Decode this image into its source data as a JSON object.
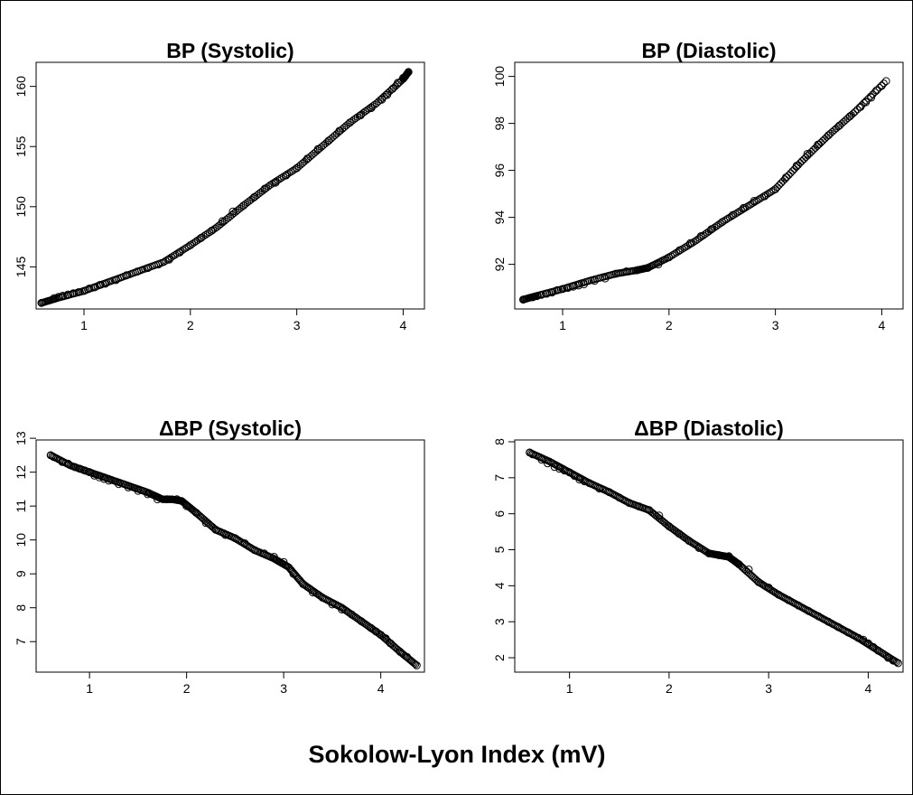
{
  "figure": {
    "xlabel": "Sokolow-Lyon Index (mV)"
  },
  "chart_data": [
    {
      "type": "scatter",
      "title": "BP (Systolic)",
      "xlabel": "",
      "ylabel": "",
      "xlim": [
        0.55,
        4.2
      ],
      "ylim": [
        141.5,
        162
      ],
      "xticks": [
        1,
        2,
        3,
        4
      ],
      "yticks": [
        145,
        150,
        155,
        160
      ],
      "grid": false,
      "curve": {
        "x": [
          0.6,
          0.75,
          1.0,
          1.25,
          1.5,
          1.75,
          2.0,
          2.25,
          2.5,
          2.75,
          3.0,
          3.25,
          3.5,
          3.75,
          4.0,
          4.05
        ],
        "y": [
          142.0,
          142.4,
          143.0,
          143.8,
          144.6,
          145.4,
          146.8,
          148.3,
          150.1,
          151.8,
          153.2,
          155.1,
          157.0,
          158.6,
          160.6,
          161.2
        ]
      },
      "series": [
        {
          "x": [
            0.6,
            0.72,
            0.76,
            0.8,
            0.85,
            0.9,
            0.95,
            1.0,
            1.05,
            1.1,
            1.15,
            1.2,
            1.3,
            1.4,
            1.5,
            1.6,
            1.7,
            1.8,
            1.9,
            2.0,
            2.1,
            2.2,
            2.3,
            2.4,
            2.5,
            2.6,
            2.7,
            2.8,
            2.9,
            3.0,
            3.1,
            3.2,
            3.3,
            3.4,
            3.5,
            3.6,
            3.7,
            3.8,
            3.85,
            3.9,
            3.95,
            4.0,
            4.05
          ],
          "y": [
            142.0,
            142.4,
            142.5,
            142.6,
            142.7,
            142.8,
            142.9,
            143.0,
            143.2,
            143.3,
            143.5,
            143.6,
            143.9,
            144.3,
            144.6,
            144.9,
            145.2,
            145.6,
            146.2,
            146.8,
            147.4,
            148.0,
            148.8,
            149.6,
            150.1,
            150.8,
            151.5,
            152.0,
            152.6,
            153.2,
            154.0,
            154.8,
            155.5,
            156.3,
            157.0,
            157.6,
            158.2,
            158.9,
            159.3,
            159.8,
            160.3,
            160.7,
            161.2
          ]
        }
      ]
    },
    {
      "type": "scatter",
      "title": "BP (Diastolic)",
      "xlabel": "",
      "ylabel": "",
      "xlim": [
        0.55,
        4.2
      ],
      "ylim": [
        90.1,
        100.6
      ],
      "xticks": [
        1,
        2,
        3,
        4
      ],
      "yticks": [
        92,
        94,
        96,
        98,
        100
      ],
      "grid": false,
      "curve": {
        "x": [
          0.63,
          0.75,
          1.0,
          1.25,
          1.5,
          1.7,
          1.8,
          2.0,
          2.25,
          2.5,
          2.75,
          3.0,
          3.25,
          3.5,
          3.75,
          4.04
        ],
        "y": [
          90.5,
          90.65,
          90.95,
          91.3,
          91.6,
          91.75,
          91.85,
          92.3,
          93.0,
          93.8,
          94.5,
          95.2,
          96.4,
          97.5,
          98.5,
          99.8
        ]
      },
      "series": [
        {
          "x": [
            0.63,
            0.72,
            0.76,
            0.8,
            0.85,
            0.9,
            0.95,
            1.0,
            1.05,
            1.1,
            1.15,
            1.2,
            1.3,
            1.4,
            1.5,
            1.6,
            1.7,
            1.8,
            1.9,
            2.0,
            2.1,
            2.2,
            2.3,
            2.4,
            2.5,
            2.6,
            2.7,
            2.8,
            2.9,
            3.0,
            3.1,
            3.2,
            3.3,
            3.4,
            3.5,
            3.6,
            3.7,
            3.8,
            3.85,
            3.9,
            3.95,
            4.0,
            4.04
          ],
          "y": [
            90.5,
            90.6,
            90.65,
            90.7,
            90.75,
            90.8,
            90.9,
            90.95,
            91.0,
            91.05,
            91.1,
            91.15,
            91.3,
            91.4,
            91.6,
            91.7,
            91.75,
            91.85,
            92.0,
            92.3,
            92.6,
            92.9,
            93.2,
            93.5,
            93.8,
            94.1,
            94.4,
            94.7,
            94.9,
            95.2,
            95.7,
            96.2,
            96.7,
            97.1,
            97.5,
            97.9,
            98.3,
            98.7,
            98.9,
            99.1,
            99.4,
            99.6,
            99.8
          ]
        }
      ]
    },
    {
      "type": "scatter",
      "title": "ΔBP (Systolic)",
      "xlabel": "",
      "ylabel": "",
      "xlim": [
        0.45,
        4.45
      ],
      "ylim": [
        6.1,
        12.95
      ],
      "xticks": [
        1,
        2,
        3,
        4
      ],
      "yticks": [
        7,
        8,
        9,
        10,
        11,
        12,
        13
      ],
      "grid": false,
      "curve": {
        "x": [
          0.6,
          0.8,
          1.0,
          1.2,
          1.4,
          1.6,
          1.75,
          1.85,
          1.95,
          2.1,
          2.3,
          2.5,
          2.7,
          2.9,
          3.05,
          3.2,
          3.4,
          3.6,
          3.8,
          4.0,
          4.2,
          4.37
        ],
        "y": [
          12.5,
          12.2,
          12.0,
          11.8,
          11.6,
          11.4,
          11.2,
          11.2,
          11.15,
          10.8,
          10.3,
          10.05,
          9.7,
          9.45,
          9.2,
          8.7,
          8.3,
          8.0,
          7.6,
          7.2,
          6.7,
          6.3
        ]
      },
      "series": [
        {
          "x": [
            0.6,
            0.63,
            0.72,
            0.78,
            0.85,
            0.9,
            0.95,
            1.0,
            1.05,
            1.1,
            1.15,
            1.2,
            1.3,
            1.4,
            1.5,
            1.6,
            1.7,
            1.8,
            1.9,
            2.0,
            2.1,
            2.2,
            2.3,
            2.4,
            2.5,
            2.6,
            2.7,
            2.8,
            2.9,
            3.0,
            3.1,
            3.2,
            3.3,
            3.4,
            3.5,
            3.6,
            3.7,
            3.8,
            3.9,
            3.95,
            4.0,
            4.05,
            4.1,
            4.2,
            4.27,
            4.37
          ],
          "y": [
            12.5,
            12.45,
            12.3,
            12.25,
            12.15,
            12.1,
            12.05,
            12.0,
            11.9,
            11.85,
            11.8,
            11.75,
            11.65,
            11.55,
            11.45,
            11.35,
            11.2,
            11.2,
            11.2,
            11.0,
            10.8,
            10.5,
            10.3,
            10.15,
            10.05,
            9.9,
            9.7,
            9.6,
            9.5,
            9.35,
            9.0,
            8.7,
            8.45,
            8.3,
            8.1,
            7.95,
            7.8,
            7.6,
            7.4,
            7.3,
            7.2,
            7.1,
            6.95,
            6.7,
            6.55,
            6.3
          ]
        }
      ]
    },
    {
      "type": "scatter",
      "title": "ΔBP (Diastolic)",
      "xlabel": "",
      "ylabel": "",
      "xlim": [
        0.45,
        4.35
      ],
      "ylim": [
        1.6,
        8.05
      ],
      "xticks": [
        1,
        2,
        3,
        4
      ],
      "yticks": [
        2,
        3,
        4,
        5,
        6,
        7,
        8
      ],
      "grid": false,
      "curve": {
        "x": [
          0.6,
          0.8,
          1.0,
          1.2,
          1.4,
          1.6,
          1.8,
          2.0,
          2.2,
          2.4,
          2.5,
          2.6,
          2.7,
          2.9,
          3.1,
          3.3,
          3.5,
          3.7,
          3.9,
          4.1,
          4.3
        ],
        "y": [
          7.7,
          7.45,
          7.15,
          6.85,
          6.6,
          6.3,
          6.1,
          5.65,
          5.25,
          4.9,
          4.85,
          4.8,
          4.6,
          4.1,
          3.75,
          3.45,
          3.15,
          2.85,
          2.55,
          2.2,
          1.85
        ]
      },
      "series": [
        {
          "x": [
            0.6,
            0.63,
            0.72,
            0.78,
            0.85,
            0.9,
            0.95,
            1.0,
            1.05,
            1.1,
            1.15,
            1.2,
            1.3,
            1.4,
            1.5,
            1.6,
            1.7,
            1.8,
            1.9,
            2.0,
            2.1,
            2.2,
            2.3,
            2.4,
            2.5,
            2.6,
            2.7,
            2.8,
            2.9,
            3.0,
            3.1,
            3.2,
            3.3,
            3.4,
            3.5,
            3.6,
            3.7,
            3.8,
            3.9,
            3.95,
            4.0,
            4.05,
            4.1,
            4.2,
            4.25,
            4.3
          ],
          "y": [
            7.7,
            7.65,
            7.5,
            7.4,
            7.3,
            7.25,
            7.2,
            7.15,
            7.05,
            6.95,
            6.9,
            6.85,
            6.7,
            6.6,
            6.45,
            6.3,
            6.2,
            6.1,
            5.95,
            5.65,
            5.45,
            5.25,
            5.05,
            4.9,
            4.85,
            4.82,
            4.6,
            4.45,
            4.1,
            3.95,
            3.75,
            3.6,
            3.45,
            3.3,
            3.15,
            3.0,
            2.85,
            2.7,
            2.55,
            2.5,
            2.4,
            2.3,
            2.2,
            2.0,
            1.92,
            1.85
          ]
        }
      ]
    }
  ]
}
